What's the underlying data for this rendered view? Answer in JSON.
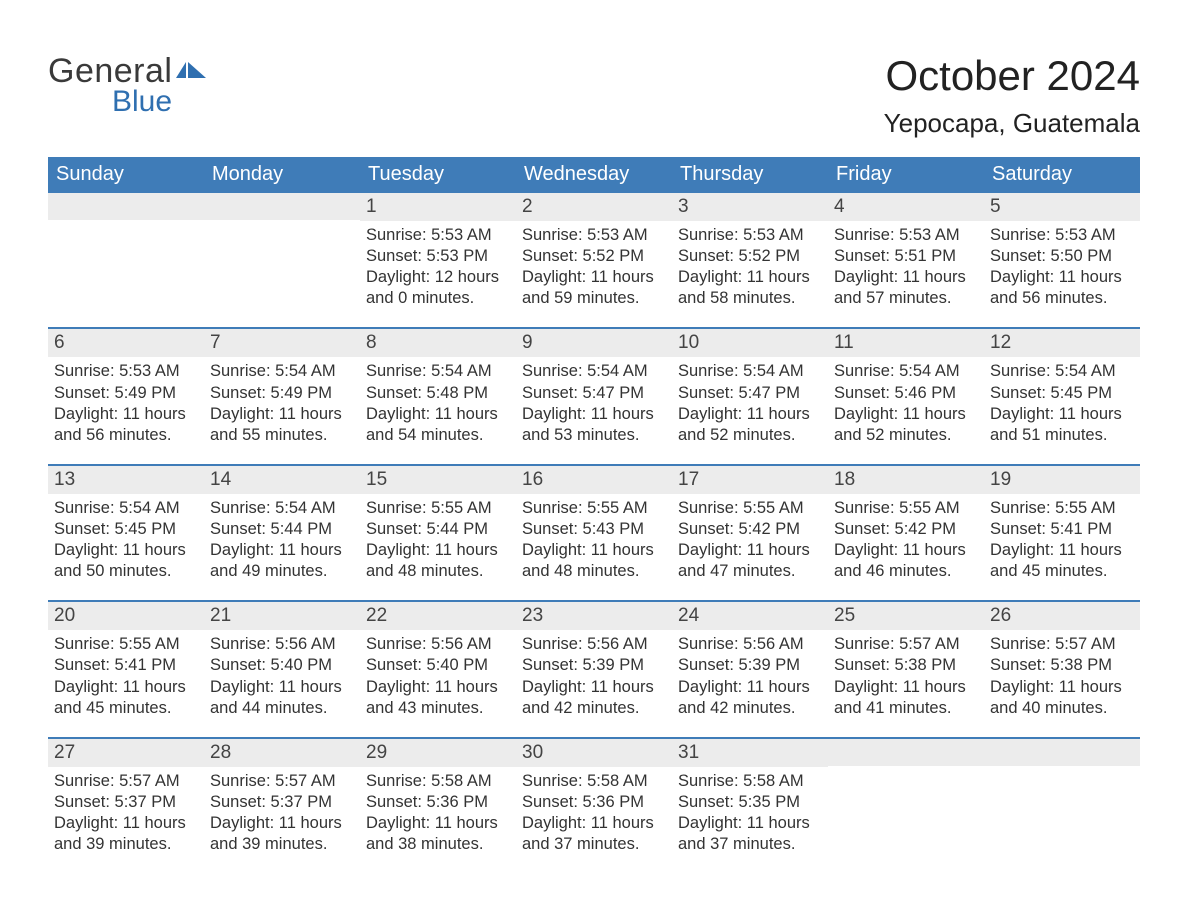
{
  "logo": {
    "text1": "General",
    "text2": "Blue",
    "color_general": "#3a3a3a",
    "color_blue": "#2f6fb0",
    "flag_color": "#2f6fb0"
  },
  "header": {
    "month_title": "October 2024",
    "location": "Yepocapa, Guatemala"
  },
  "colors": {
    "header_bar": "#3f7cb8",
    "daynum_bg": "#ececec",
    "week_divider": "#3f7cb8",
    "text": "#333333",
    "page_bg": "#ffffff"
  },
  "weekdays": [
    "Sunday",
    "Monday",
    "Tuesday",
    "Wednesday",
    "Thursday",
    "Friday",
    "Saturday"
  ],
  "weeks": [
    [
      null,
      null,
      {
        "n": "1",
        "sr": "Sunrise: 5:53 AM",
        "ss": "Sunset: 5:53 PM",
        "d1": "Daylight: 12 hours",
        "d2": "and 0 minutes."
      },
      {
        "n": "2",
        "sr": "Sunrise: 5:53 AM",
        "ss": "Sunset: 5:52 PM",
        "d1": "Daylight: 11 hours",
        "d2": "and 59 minutes."
      },
      {
        "n": "3",
        "sr": "Sunrise: 5:53 AM",
        "ss": "Sunset: 5:52 PM",
        "d1": "Daylight: 11 hours",
        "d2": "and 58 minutes."
      },
      {
        "n": "4",
        "sr": "Sunrise: 5:53 AM",
        "ss": "Sunset: 5:51 PM",
        "d1": "Daylight: 11 hours",
        "d2": "and 57 minutes."
      },
      {
        "n": "5",
        "sr": "Sunrise: 5:53 AM",
        "ss": "Sunset: 5:50 PM",
        "d1": "Daylight: 11 hours",
        "d2": "and 56 minutes."
      }
    ],
    [
      {
        "n": "6",
        "sr": "Sunrise: 5:53 AM",
        "ss": "Sunset: 5:49 PM",
        "d1": "Daylight: 11 hours",
        "d2": "and 56 minutes."
      },
      {
        "n": "7",
        "sr": "Sunrise: 5:54 AM",
        "ss": "Sunset: 5:49 PM",
        "d1": "Daylight: 11 hours",
        "d2": "and 55 minutes."
      },
      {
        "n": "8",
        "sr": "Sunrise: 5:54 AM",
        "ss": "Sunset: 5:48 PM",
        "d1": "Daylight: 11 hours",
        "d2": "and 54 minutes."
      },
      {
        "n": "9",
        "sr": "Sunrise: 5:54 AM",
        "ss": "Sunset: 5:47 PM",
        "d1": "Daylight: 11 hours",
        "d2": "and 53 minutes."
      },
      {
        "n": "10",
        "sr": "Sunrise: 5:54 AM",
        "ss": "Sunset: 5:47 PM",
        "d1": "Daylight: 11 hours",
        "d2": "and 52 minutes."
      },
      {
        "n": "11",
        "sr": "Sunrise: 5:54 AM",
        "ss": "Sunset: 5:46 PM",
        "d1": "Daylight: 11 hours",
        "d2": "and 52 minutes."
      },
      {
        "n": "12",
        "sr": "Sunrise: 5:54 AM",
        "ss": "Sunset: 5:45 PM",
        "d1": "Daylight: 11 hours",
        "d2": "and 51 minutes."
      }
    ],
    [
      {
        "n": "13",
        "sr": "Sunrise: 5:54 AM",
        "ss": "Sunset: 5:45 PM",
        "d1": "Daylight: 11 hours",
        "d2": "and 50 minutes."
      },
      {
        "n": "14",
        "sr": "Sunrise: 5:54 AM",
        "ss": "Sunset: 5:44 PM",
        "d1": "Daylight: 11 hours",
        "d2": "and 49 minutes."
      },
      {
        "n": "15",
        "sr": "Sunrise: 5:55 AM",
        "ss": "Sunset: 5:44 PM",
        "d1": "Daylight: 11 hours",
        "d2": "and 48 minutes."
      },
      {
        "n": "16",
        "sr": "Sunrise: 5:55 AM",
        "ss": "Sunset: 5:43 PM",
        "d1": "Daylight: 11 hours",
        "d2": "and 48 minutes."
      },
      {
        "n": "17",
        "sr": "Sunrise: 5:55 AM",
        "ss": "Sunset: 5:42 PM",
        "d1": "Daylight: 11 hours",
        "d2": "and 47 minutes."
      },
      {
        "n": "18",
        "sr": "Sunrise: 5:55 AM",
        "ss": "Sunset: 5:42 PM",
        "d1": "Daylight: 11 hours",
        "d2": "and 46 minutes."
      },
      {
        "n": "19",
        "sr": "Sunrise: 5:55 AM",
        "ss": "Sunset: 5:41 PM",
        "d1": "Daylight: 11 hours",
        "d2": "and 45 minutes."
      }
    ],
    [
      {
        "n": "20",
        "sr": "Sunrise: 5:55 AM",
        "ss": "Sunset: 5:41 PM",
        "d1": "Daylight: 11 hours",
        "d2": "and 45 minutes."
      },
      {
        "n": "21",
        "sr": "Sunrise: 5:56 AM",
        "ss": "Sunset: 5:40 PM",
        "d1": "Daylight: 11 hours",
        "d2": "and 44 minutes."
      },
      {
        "n": "22",
        "sr": "Sunrise: 5:56 AM",
        "ss": "Sunset: 5:40 PM",
        "d1": "Daylight: 11 hours",
        "d2": "and 43 minutes."
      },
      {
        "n": "23",
        "sr": "Sunrise: 5:56 AM",
        "ss": "Sunset: 5:39 PM",
        "d1": "Daylight: 11 hours",
        "d2": "and 42 minutes."
      },
      {
        "n": "24",
        "sr": "Sunrise: 5:56 AM",
        "ss": "Sunset: 5:39 PM",
        "d1": "Daylight: 11 hours",
        "d2": "and 42 minutes."
      },
      {
        "n": "25",
        "sr": "Sunrise: 5:57 AM",
        "ss": "Sunset: 5:38 PM",
        "d1": "Daylight: 11 hours",
        "d2": "and 41 minutes."
      },
      {
        "n": "26",
        "sr": "Sunrise: 5:57 AM",
        "ss": "Sunset: 5:38 PM",
        "d1": "Daylight: 11 hours",
        "d2": "and 40 minutes."
      }
    ],
    [
      {
        "n": "27",
        "sr": "Sunrise: 5:57 AM",
        "ss": "Sunset: 5:37 PM",
        "d1": "Daylight: 11 hours",
        "d2": "and 39 minutes."
      },
      {
        "n": "28",
        "sr": "Sunrise: 5:57 AM",
        "ss": "Sunset: 5:37 PM",
        "d1": "Daylight: 11 hours",
        "d2": "and 39 minutes."
      },
      {
        "n": "29",
        "sr": "Sunrise: 5:58 AM",
        "ss": "Sunset: 5:36 PM",
        "d1": "Daylight: 11 hours",
        "d2": "and 38 minutes."
      },
      {
        "n": "30",
        "sr": "Sunrise: 5:58 AM",
        "ss": "Sunset: 5:36 PM",
        "d1": "Daylight: 11 hours",
        "d2": "and 37 minutes."
      },
      {
        "n": "31",
        "sr": "Sunrise: 5:58 AM",
        "ss": "Sunset: 5:35 PM",
        "d1": "Daylight: 11 hours",
        "d2": "and 37 minutes."
      },
      null,
      null
    ]
  ]
}
